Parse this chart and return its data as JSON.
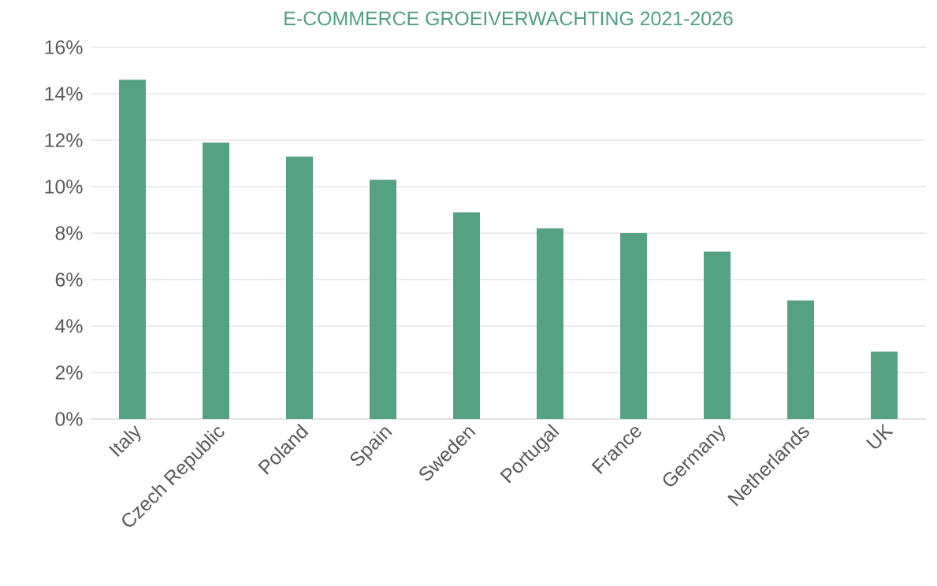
{
  "chart_data": {
    "type": "bar",
    "title": "E-COMMERCE GROEIVERWACHTING 2021-2026",
    "categories": [
      "Italy",
      "Czech Republic",
      "Poland",
      "Spain",
      "Sweden",
      "Portugal",
      "France",
      "Germany",
      "Netherlands",
      "UK"
    ],
    "values": [
      14.6,
      11.9,
      11.3,
      10.3,
      8.9,
      8.2,
      8.0,
      7.2,
      5.1,
      2.9
    ],
    "color": "#55a184",
    "ylim": [
      0,
      16
    ],
    "yticks": [
      {
        "value": 0,
        "label": "0%"
      },
      {
        "value": 2,
        "label": "2%"
      },
      {
        "value": 4,
        "label": "4%"
      },
      {
        "value": 6,
        "label": "6%"
      },
      {
        "value": 8,
        "label": "8%"
      },
      {
        "value": 10,
        "label": "10%"
      },
      {
        "value": 12,
        "label": "12%"
      },
      {
        "value": 14,
        "label": "14%"
      },
      {
        "value": 16,
        "label": "16%"
      }
    ],
    "grid": "y"
  }
}
